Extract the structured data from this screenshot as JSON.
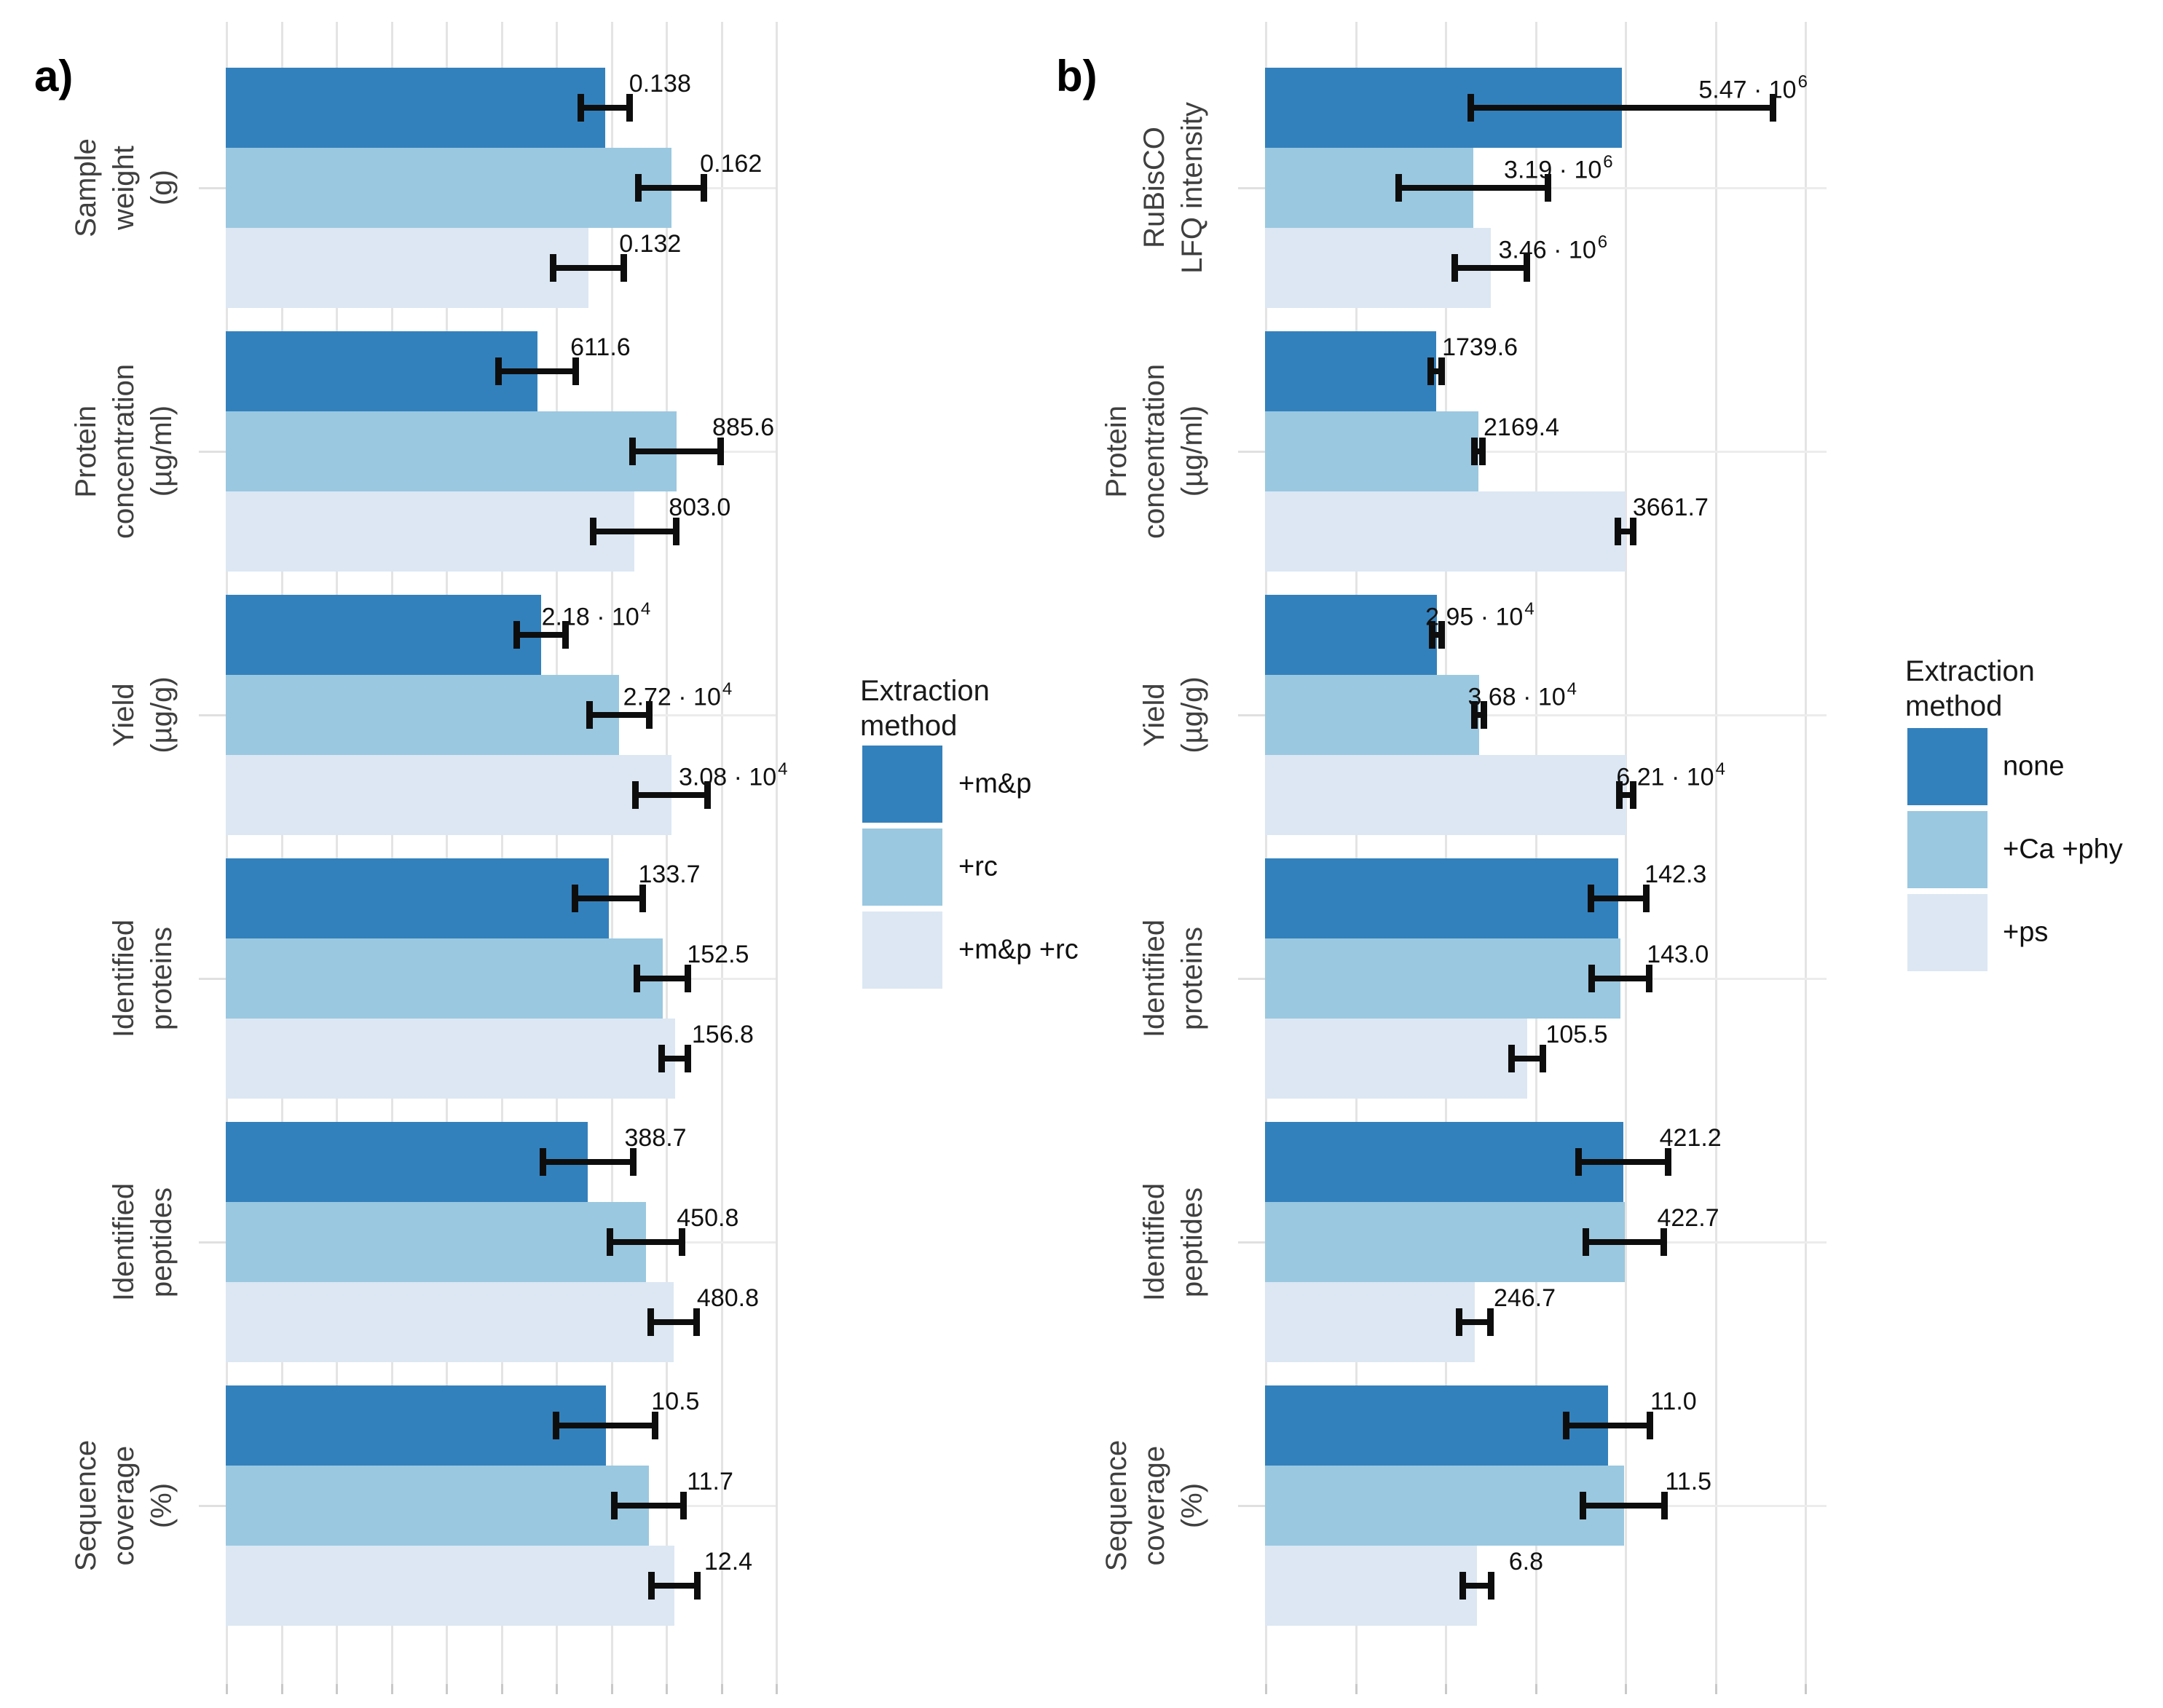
{
  "figure": {
    "panel_a": {
      "label": "a)"
    },
    "panel_b": {
      "label": "b)"
    }
  },
  "colors": {
    "series": [
      "#3381bc",
      "#9ac8e0",
      "#dce7f3"
    ],
    "error_bar": "#0d0d0d",
    "grid_vertical": "#e4e4e4",
    "grid_horizontal": "#ececec",
    "axis_tick": "#c9c9c9",
    "category_text": "#3f3f3f",
    "value_text": "#111111"
  },
  "chart_data": [
    {
      "panel": "a",
      "type": "bar",
      "orientation": "horizontal",
      "grid": true,
      "legend": {
        "title_lines": [
          "Extraction",
          "method"
        ],
        "position": "right",
        "items": [
          {
            "label": "+m&p"
          },
          {
            "label": "+rc"
          },
          {
            "label": "+m&p +rc"
          }
        ]
      },
      "groups": [
        {
          "category_lines": [
            "Sample",
            "weight",
            "(g)"
          ],
          "xmax": 0.2,
          "bars": [
            {
              "value": 0.138,
              "err": 0.009,
              "label": "0.138",
              "sup": ""
            },
            {
              "value": 0.162,
              "err": 0.012,
              "label": "0.162",
              "sup": ""
            },
            {
              "value": 0.132,
              "err": 0.013,
              "label": "0.132",
              "sup": ""
            }
          ]
        },
        {
          "category_lines": [
            "Protein",
            "concentration",
            "(µg/ml)"
          ],
          "xmax": 1080,
          "bars": [
            {
              "value": 611.6,
              "err": 76,
              "label": "611.6",
              "sup": ""
            },
            {
              "value": 885.6,
              "err": 87,
              "label": "885.6",
              "sup": ""
            },
            {
              "value": 803.0,
              "err": 82,
              "label": "803.0",
              "sup": ""
            }
          ]
        },
        {
          "category_lines": [
            "Yield",
            "(µg/g)"
          ],
          "xmax": 38000,
          "bars": [
            {
              "value": 21800,
              "err": 1700,
              "label": "2.18 · 10",
              "sup": "4"
            },
            {
              "value": 27200,
              "err": 2100,
              "label": "2.72 · 10",
              "sup": "4"
            },
            {
              "value": 30800,
              "err": 2500,
              "label": "3.08 · 10",
              "sup": "4"
            }
          ]
        },
        {
          "category_lines": [
            "Identified",
            "proteins"
          ],
          "xmax": 192,
          "bars": [
            {
              "value": 133.7,
              "err": 12,
              "label": "133.7",
              "sup": ""
            },
            {
              "value": 152.5,
              "err": 9,
              "label": "152.5",
              "sup": ""
            },
            {
              "value": 156.8,
              "err": 4.6,
              "label": "156.8",
              "sup": ""
            }
          ]
        },
        {
          "category_lines": [
            "Identified",
            "peptides"
          ],
          "xmax": 590,
          "bars": [
            {
              "value": 388.7,
              "err": 49,
              "label": "388.7",
              "sup": ""
            },
            {
              "value": 450.8,
              "err": 39,
              "label": "450.8",
              "sup": ""
            },
            {
              "value": 480.8,
              "err": 25,
              "label": "480.8",
              "sup": ""
            }
          ]
        },
        {
          "category_lines": [
            "Sequence",
            "coverage",
            "(%)"
          ],
          "xmax": 15.2,
          "bars": [
            {
              "value": 10.5,
              "err": 1.37,
              "label": "10.5",
              "sup": ""
            },
            {
              "value": 11.7,
              "err": 0.97,
              "label": "11.7",
              "sup": ""
            },
            {
              "value": 12.4,
              "err": 0.64,
              "label": "12.4",
              "sup": ""
            }
          ]
        }
      ]
    },
    {
      "panel": "b",
      "type": "bar",
      "orientation": "horizontal",
      "grid": true,
      "legend": {
        "title_lines": [
          "Extraction",
          "method"
        ],
        "position": "right",
        "items": [
          {
            "label": "none"
          },
          {
            "label": "+Ca +phy"
          },
          {
            "label": "+ps"
          }
        ]
      },
      "groups": [
        {
          "category_lines": [
            "RuBisCO",
            "LFQ intensity"
          ],
          "xmax": 8600000,
          "bars": [
            {
              "value": 5470000,
              "err": 2320000,
              "label": "5.47 · 10",
              "sup": "6"
            },
            {
              "value": 3190000,
              "err": 1150000,
              "label": "3.19 · 10",
              "sup": "6"
            },
            {
              "value": 3460000,
              "err": 560000,
              "label": "3.46 · 10",
              "sup": "6"
            }
          ]
        },
        {
          "category_lines": [
            "Protein",
            "concentration",
            "(µg/ml)"
          ],
          "xmax": 5700,
          "bars": [
            {
              "value": 1739.6,
              "err": 59,
              "label": "1739.6",
              "sup": ""
            },
            {
              "value": 2169.4,
              "err": 44,
              "label": "2169.4",
              "sup": ""
            },
            {
              "value": 3661.7,
              "err": 81,
              "label": "3661.7",
              "sup": ""
            }
          ]
        },
        {
          "category_lines": [
            "Yield",
            "(µg/g)"
          ],
          "xmax": 96500,
          "bars": [
            {
              "value": 29500,
              "err": 880,
              "label": "2.95 · 10",
              "sup": "4"
            },
            {
              "value": 36800,
              "err": 880,
              "label": "3.68 · 10",
              "sup": "4"
            },
            {
              "value": 62100,
              "err": 1250,
              "label": "6.21 · 10",
              "sup": "4"
            }
          ]
        },
        {
          "category_lines": [
            "Identified",
            "proteins"
          ],
          "xmax": 226,
          "bars": [
            {
              "value": 142.3,
              "err": 11.4,
              "label": "142.3",
              "sup": ""
            },
            {
              "value": 143.0,
              "err": 11.7,
              "label": "143.0",
              "sup": ""
            },
            {
              "value": 105.5,
              "err": 6.4,
              "label": "105.5",
              "sup": ""
            }
          ]
        },
        {
          "category_lines": [
            "Identified",
            "peptides"
          ],
          "xmax": 660,
          "bars": [
            {
              "value": 421.2,
              "err": 53,
              "label": "421.2",
              "sup": ""
            },
            {
              "value": 422.7,
              "err": 46,
              "label": "422.7",
              "sup": ""
            },
            {
              "value": 246.7,
              "err": 19,
              "label": "246.7",
              "sup": ""
            }
          ]
        },
        {
          "category_lines": [
            "Sequence",
            "coverage",
            "(%)"
          ],
          "xmax": 18,
          "bars": [
            {
              "value": 11.0,
              "err": 1.35,
              "label": "11.0",
              "sup": ""
            },
            {
              "value": 11.5,
              "err": 1.31,
              "label": "11.5",
              "sup": ""
            },
            {
              "value": 6.8,
              "err": 0.47,
              "label": "6.8",
              "sup": ""
            }
          ]
        }
      ]
    }
  ]
}
